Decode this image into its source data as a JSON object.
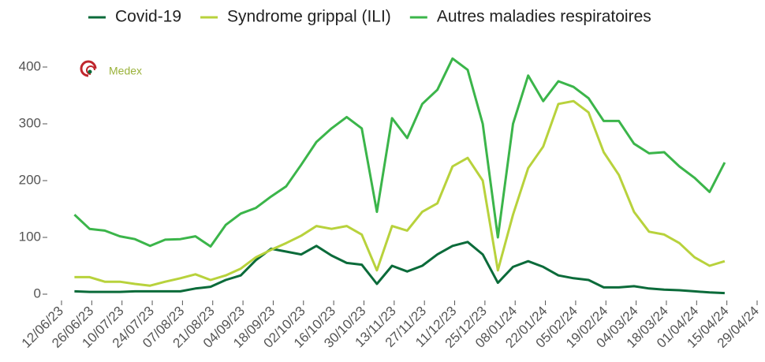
{
  "chart_data": {
    "type": "line",
    "logo_text": "Medex",
    "x": [
      "18/06/23",
      "25/06/23",
      "02/07/23",
      "09/07/23",
      "16/07/23",
      "23/07/23",
      "30/07/23",
      "06/08/23",
      "13/08/23",
      "20/08/23",
      "27/08/23",
      "03/09/23",
      "10/09/23",
      "17/09/23",
      "24/09/23",
      "01/10/23",
      "08/10/23",
      "15/10/23",
      "22/10/23",
      "29/10/23",
      "05/11/23",
      "12/11/23",
      "19/11/23",
      "26/11/23",
      "03/12/23",
      "10/12/23",
      "17/12/23",
      "24/12/23",
      "31/12/23",
      "07/01/24",
      "14/01/24",
      "21/01/24",
      "28/01/24",
      "04/02/24",
      "11/02/24",
      "18/02/24",
      "25/02/24",
      "03/03/24",
      "10/03/24",
      "17/03/24",
      "24/03/24",
      "31/03/24",
      "07/04/24",
      "14/04/24"
    ],
    "series": [
      {
        "name": "Covid-19",
        "color": "#0b6b3a",
        "values": [
          5,
          4,
          4,
          4,
          5,
          5,
          5,
          5,
          10,
          13,
          25,
          33,
          60,
          80,
          75,
          70,
          85,
          68,
          55,
          52,
          18,
          50,
          40,
          50,
          70,
          85,
          92,
          70,
          20,
          48,
          58,
          48,
          33,
          28,
          25,
          12,
          12,
          14,
          10,
          8,
          7,
          5,
          3,
          2
        ]
      },
      {
        "name": "Syndrome grippal (ILI)",
        "color": "#b8d23c",
        "values": [
          30,
          30,
          22,
          22,
          18,
          15,
          22,
          28,
          35,
          25,
          33,
          45,
          65,
          78,
          90,
          103,
          120,
          115,
          120,
          105,
          42,
          120,
          112,
          145,
          160,
          225,
          240,
          200,
          42,
          140,
          222,
          260,
          335,
          340,
          320,
          250,
          210,
          145,
          110,
          105,
          90,
          65,
          50,
          58
        ]
      },
      {
        "name": "Autres maladies respiratoires",
        "color": "#3bb54a",
        "values": [
          140,
          115,
          112,
          102,
          97,
          85,
          96,
          97,
          102,
          84,
          122,
          142,
          152,
          172,
          190,
          228,
          268,
          292,
          312,
          292,
          145,
          310,
          275,
          335,
          360,
          415,
          395,
          300,
          100,
          300,
          385,
          340,
          375,
          365,
          345,
          305,
          305,
          265,
          248,
          250,
          225,
          205,
          180,
          232
        ]
      }
    ],
    "xlim": [
      "12/06/23",
      "29/04/24"
    ],
    "xticks": [
      "12/06/23",
      "26/06/23",
      "10/07/23",
      "24/07/23",
      "07/08/23",
      "21/08/23",
      "04/09/23",
      "18/09/23",
      "02/10/23",
      "16/10/23",
      "30/10/23",
      "13/11/23",
      "27/11/23",
      "11/12/23",
      "25/12/23",
      "08/01/24",
      "22/01/24",
      "05/02/24",
      "19/02/24",
      "04/03/24",
      "18/03/24",
      "01/04/24",
      "15/04/24",
      "29/04/24"
    ],
    "ylim": [
      -5,
      430
    ],
    "yticks": [
      0,
      100,
      200,
      300,
      400
    ],
    "grid": false,
    "legend": "top"
  }
}
